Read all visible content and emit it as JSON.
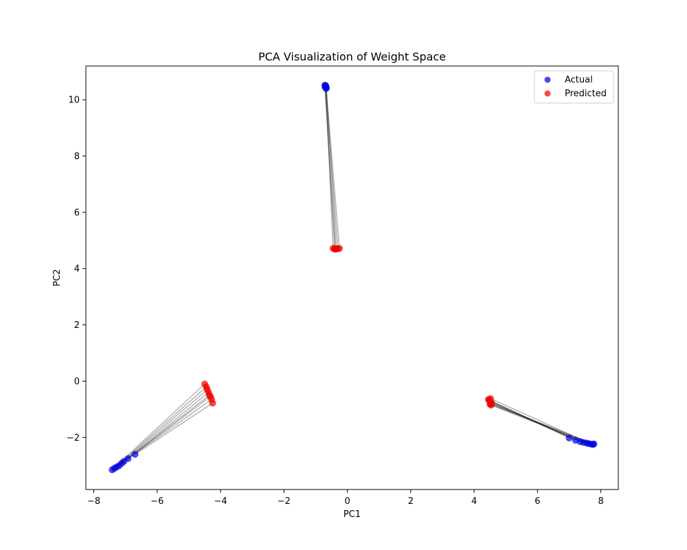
{
  "chart_data": {
    "type": "scatter",
    "title": "PCA Visualization of Weight Space",
    "xlabel": "PC1",
    "ylabel": "PC2",
    "xlim": [
      -8.25,
      8.55
    ],
    "ylim": [
      -3.85,
      11.2
    ],
    "xticks": [
      -8,
      -6,
      -4,
      -2,
      0,
      2,
      4,
      6,
      8
    ],
    "yticks": [
      -2,
      0,
      2,
      4,
      6,
      8,
      10
    ],
    "grid": false,
    "legend_position": "top-right",
    "colors": {
      "actual": "#0000e0",
      "predicted": "#ee0000",
      "link": "#000000"
    },
    "series": [
      {
        "name": "Actual",
        "points": [
          [
            -0.68,
            10.5
          ],
          [
            -0.7,
            10.45
          ],
          [
            -0.66,
            10.42
          ],
          [
            -0.69,
            10.48
          ],
          [
            -0.67,
            10.4
          ],
          [
            -0.71,
            10.52
          ],
          [
            -7.42,
            -3.15
          ],
          [
            -7.35,
            -3.1
          ],
          [
            -7.28,
            -3.05
          ],
          [
            -7.2,
            -3.0
          ],
          [
            -7.12,
            -2.92
          ],
          [
            -7.05,
            -2.85
          ],
          [
            -6.92,
            -2.75
          ],
          [
            -6.7,
            -2.6
          ],
          [
            7.0,
            -2.02
          ],
          [
            7.2,
            -2.1
          ],
          [
            7.35,
            -2.15
          ],
          [
            7.45,
            -2.18
          ],
          [
            7.55,
            -2.2
          ],
          [
            7.62,
            -2.22
          ],
          [
            7.7,
            -2.24
          ],
          [
            7.75,
            -2.25
          ],
          [
            7.78,
            -2.23
          ]
        ]
      },
      {
        "name": "Predicted",
        "points": [
          [
            -0.45,
            4.72
          ],
          [
            -0.4,
            4.7
          ],
          [
            -0.35,
            4.71
          ],
          [
            -0.3,
            4.7
          ],
          [
            -0.25,
            4.72
          ],
          [
            -0.38,
            4.69
          ],
          [
            -4.5,
            -0.1
          ],
          [
            -4.45,
            -0.2
          ],
          [
            -4.42,
            -0.3
          ],
          [
            -4.38,
            -0.4
          ],
          [
            -4.35,
            -0.5
          ],
          [
            -4.32,
            -0.55
          ],
          [
            -4.28,
            -0.65
          ],
          [
            -4.25,
            -0.78
          ],
          [
            4.45,
            -0.65
          ],
          [
            4.48,
            -0.68
          ],
          [
            4.5,
            -0.72
          ],
          [
            4.52,
            -0.76
          ],
          [
            4.53,
            -0.8
          ],
          [
            4.54,
            -0.85
          ],
          [
            4.52,
            -0.62
          ],
          [
            4.55,
            -0.78
          ],
          [
            4.5,
            -0.82
          ]
        ]
      }
    ]
  }
}
